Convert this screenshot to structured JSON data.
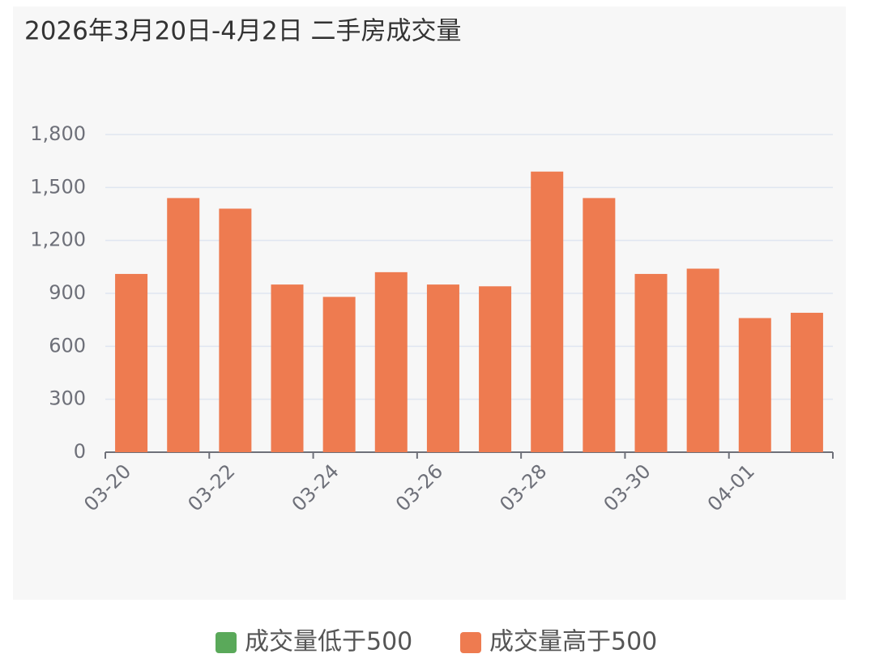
{
  "chart_data": {
    "type": "bar",
    "title": "2026年3月20日-4月2日 二手房成交量",
    "categories": [
      "03-20",
      null,
      "03-22",
      null,
      "03-24",
      null,
      "03-26",
      null,
      "03-28",
      null,
      "03-30",
      null,
      "04-01",
      null
    ],
    "series": [
      {
        "name": "成交量低于500",
        "color": "#5aa95a",
        "values": [
          null,
          null,
          null,
          null,
          null,
          null,
          null,
          null,
          null,
          null,
          null,
          null,
          null,
          null
        ]
      },
      {
        "name": "成交量高于500",
        "color": "#ee7b50",
        "values": [
          1010,
          1440,
          1380,
          950,
          880,
          1020,
          950,
          940,
          1590,
          1440,
          1010,
          1040,
          760,
          790
        ]
      }
    ],
    "stacked": true,
    "ylim": [
      0,
      1800
    ],
    "yticks": [
      0,
      300,
      600,
      900,
      {
        "value": 1200,
        "label": "1,200"
      },
      {
        "value": 1500,
        "label": "1,500"
      },
      {
        "value": 1800,
        "label": "1,800"
      }
    ],
    "grid": true,
    "legend": "bottom"
  }
}
